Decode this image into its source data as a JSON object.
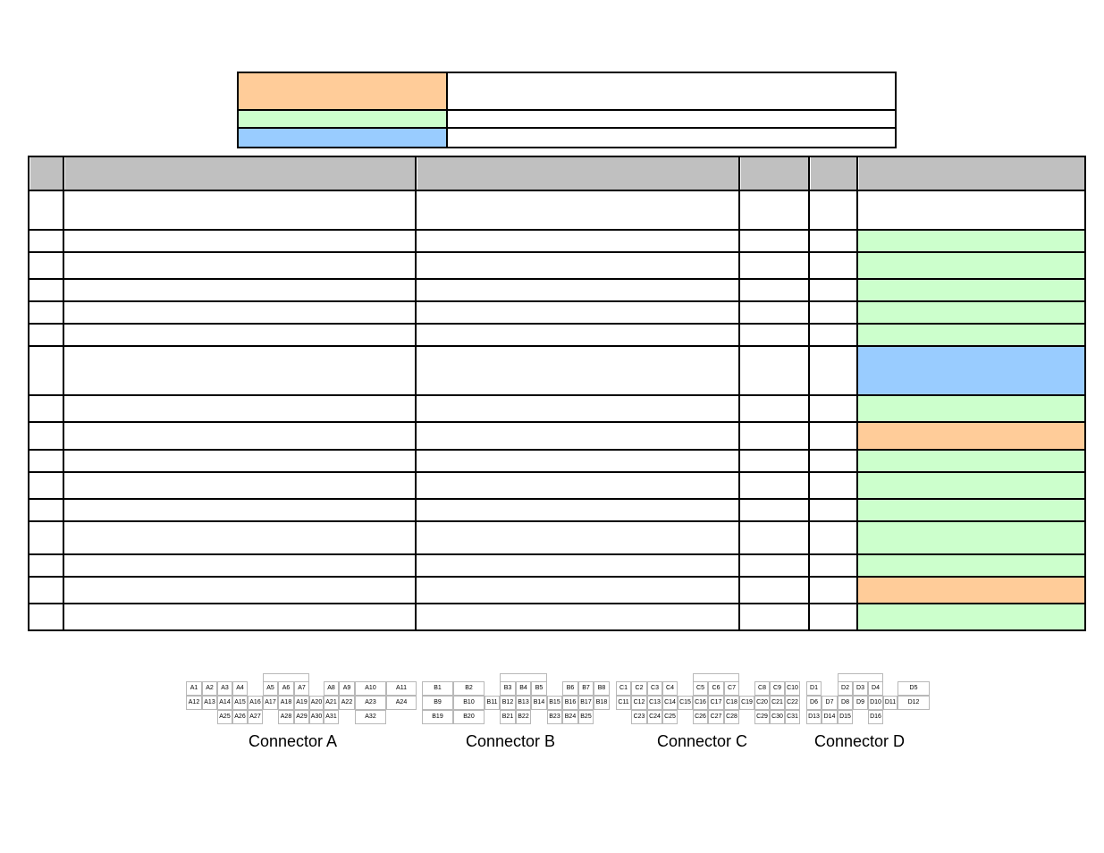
{
  "legend": {
    "colors": {
      "orange": "#ffcc99",
      "green": "#ccffcc",
      "blue": "#99ccff"
    }
  },
  "status_colors": {
    "green": "#ccffcc",
    "blue": "#99ccff",
    "orange": "#ffcc99"
  },
  "table": {
    "row_status": [
      "none",
      "green",
      "green",
      "green",
      "green",
      "green",
      "blue",
      "green",
      "orange",
      "green",
      "green",
      "green",
      "green",
      "green",
      "orange",
      "green"
    ]
  },
  "connectors": {
    "labels": {
      "a": "Connector A",
      "b": "Connector B",
      "c": "Connector C",
      "d": "Connector D"
    },
    "a": {
      "row1": [
        "A1",
        "A2",
        "A3",
        "A4",
        "A5",
        "A6",
        "A7",
        "A8",
        "A9",
        "A10",
        "A11"
      ],
      "row2": [
        "A12",
        "A13",
        "A14",
        "A15",
        "A16",
        "A17",
        "A18",
        "A19",
        "A20",
        "A21",
        "A22",
        "A23",
        "A24"
      ],
      "row3": [
        "A25",
        "A26",
        "A27",
        "A28",
        "A29",
        "A30",
        "A31",
        "A32"
      ]
    },
    "b": {
      "row1": [
        "B1",
        "B2",
        "B3",
        "B4",
        "B5",
        "B6",
        "B7",
        "B8"
      ],
      "row2": [
        "B9",
        "B10",
        "B11",
        "B12",
        "B13",
        "B14",
        "B15",
        "B16",
        "B17",
        "B18"
      ],
      "row3": [
        "B19",
        "B20",
        "B21",
        "B22",
        "B23",
        "B24",
        "B25"
      ]
    },
    "c": {
      "row1": [
        "C1",
        "C2",
        "C3",
        "C4",
        "C5",
        "C6",
        "C7",
        "C8",
        "C9",
        "C10"
      ],
      "row2": [
        "C11",
        "C12",
        "C13",
        "C14",
        "C15",
        "C16",
        "C17",
        "C18",
        "C19",
        "C20",
        "C21",
        "C22"
      ],
      "row3": [
        "C23",
        "C24",
        "C25",
        "C26",
        "C27",
        "C28",
        "C29",
        "C30",
        "C31"
      ]
    },
    "d": {
      "row1": [
        "D1",
        "D2",
        "D3",
        "D4",
        "D5"
      ],
      "row2": [
        "D6",
        "D7",
        "D8",
        "D9",
        "D10",
        "D11",
        "D12"
      ],
      "row3": [
        "D13",
        "D14",
        "D15",
        "D16"
      ]
    }
  }
}
